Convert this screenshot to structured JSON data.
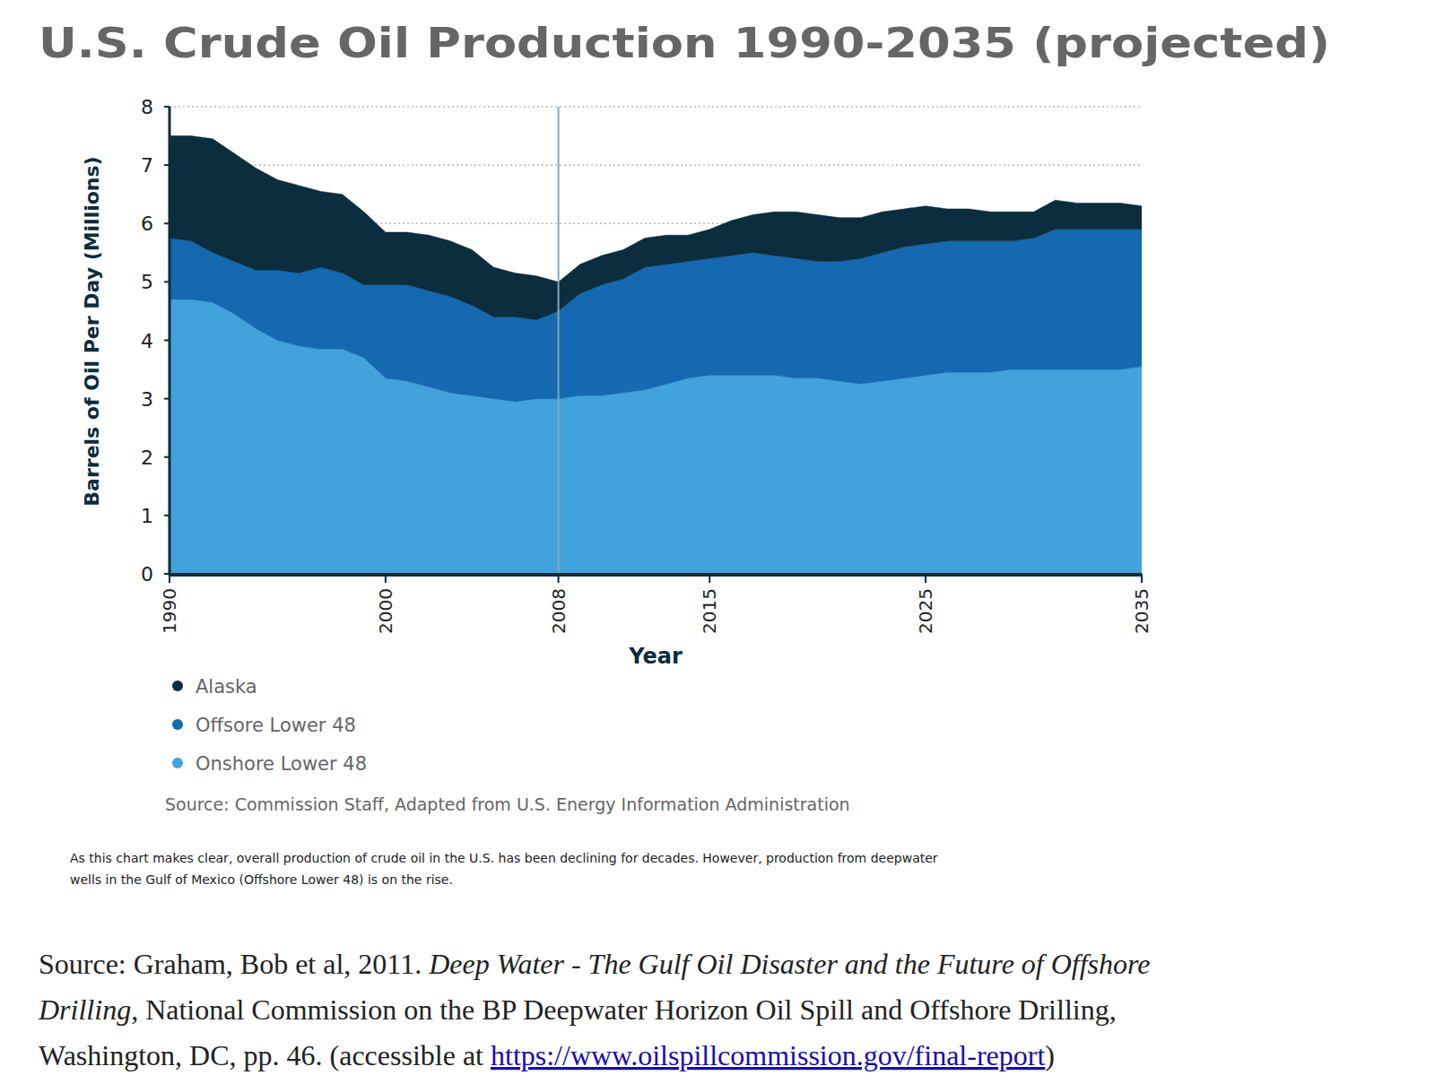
{
  "chart_data": {
    "type": "area",
    "stacked": true,
    "title": "U.S. Crude Oil Production 1990-2035 (projected)",
    "x_label": "Year",
    "y_label": "Barrels of Oil Per Day (Millions)",
    "x": [
      1990,
      1991,
      1992,
      1993,
      1994,
      1995,
      1996,
      1997,
      1998,
      1999,
      2000,
      2001,
      2002,
      2003,
      2004,
      2005,
      2006,
      2007,
      2008,
      2009,
      2010,
      2011,
      2012,
      2013,
      2014,
      2015,
      2016,
      2017,
      2018,
      2019,
      2020,
      2021,
      2022,
      2023,
      2024,
      2025,
      2026,
      2027,
      2028,
      2029,
      2030,
      2031,
      2032,
      2033,
      2034,
      2035
    ],
    "series": [
      {
        "name": "Onshore Lower 48",
        "color": "#42a3dc",
        "values": [
          4.7,
          4.7,
          4.65,
          4.45,
          4.2,
          4.0,
          3.9,
          3.85,
          3.85,
          3.7,
          3.35,
          3.3,
          3.2,
          3.1,
          3.05,
          3.0,
          2.95,
          3.0,
          3.0,
          3.05,
          3.05,
          3.1,
          3.15,
          3.25,
          3.35,
          3.4,
          3.4,
          3.4,
          3.4,
          3.35,
          3.35,
          3.3,
          3.25,
          3.3,
          3.35,
          3.4,
          3.45,
          3.45,
          3.45,
          3.5,
          3.5,
          3.5,
          3.5,
          3.5,
          3.5,
          3.55
        ]
      },
      {
        "name": "Offsore Lower 48",
        "color": "#1469b0",
        "values": [
          1.05,
          1.0,
          0.85,
          0.9,
          1.0,
          1.2,
          1.25,
          1.4,
          1.3,
          1.25,
          1.6,
          1.65,
          1.65,
          1.65,
          1.55,
          1.4,
          1.45,
          1.35,
          1.5,
          1.75,
          1.9,
          1.95,
          2.1,
          2.05,
          2.0,
          2.0,
          2.05,
          2.1,
          2.05,
          2.05,
          2.0,
          2.05,
          2.15,
          2.2,
          2.25,
          2.25,
          2.25,
          2.25,
          2.25,
          2.2,
          2.25,
          2.4,
          2.4,
          2.4,
          2.4,
          2.35
        ]
      },
      {
        "name": "Alaska",
        "color": "#0b2d3d",
        "values": [
          1.75,
          1.8,
          1.95,
          1.85,
          1.75,
          1.55,
          1.5,
          1.3,
          1.35,
          1.25,
          0.9,
          0.9,
          0.95,
          0.95,
          0.95,
          0.85,
          0.75,
          0.75,
          0.5,
          0.5,
          0.5,
          0.5,
          0.5,
          0.5,
          0.45,
          0.5,
          0.6,
          0.65,
          0.75,
          0.8,
          0.8,
          0.75,
          0.7,
          0.7,
          0.65,
          0.65,
          0.55,
          0.55,
          0.5,
          0.5,
          0.45,
          0.5,
          0.45,
          0.45,
          0.45,
          0.4
        ]
      }
    ],
    "xlim": [
      1990,
      2035
    ],
    "xticks": [
      1990,
      2000,
      2008,
      2015,
      2025,
      2035
    ],
    "ylim": [
      0,
      8
    ],
    "yticks": [
      0,
      1,
      2,
      3,
      4,
      5,
      6,
      7,
      8
    ],
    "grid": true,
    "legend": "bottom-left",
    "projection_start": 2008,
    "source": "Source: Commission Staff, Adapted from U.S. Energy Information Administration",
    "caption": [
      "As this chart makes clear, overall production of crude oil in the U.S. has been declining for decades. However, production from deepwater",
      "wells in the Gulf of Mexico (Offshore Lower 48) is on the rise."
    ],
    "citation": [
      [
        {
          "text": "Source: Graham, Bob et al, 2011. ",
          "kind": "plain"
        },
        {
          "text": "Deep Water - The Gulf Oil Disaster and the Future of Offshore",
          "kind": "italic"
        }
      ],
      [
        {
          "text": "Drilling",
          "kind": "italic"
        },
        {
          "text": ", National Commission on the BP Deepwater Horizon Oil Spill and Offshore Drilling,",
          "kind": "plain"
        }
      ],
      [
        {
          "text": "Washington, DC, pp. 46. (accessible at ",
          "kind": "plain"
        },
        {
          "text": "https://www.oilspillcommission.gov/final-report",
          "kind": "link"
        },
        {
          "text": ")",
          "kind": "plain"
        }
      ]
    ]
  }
}
